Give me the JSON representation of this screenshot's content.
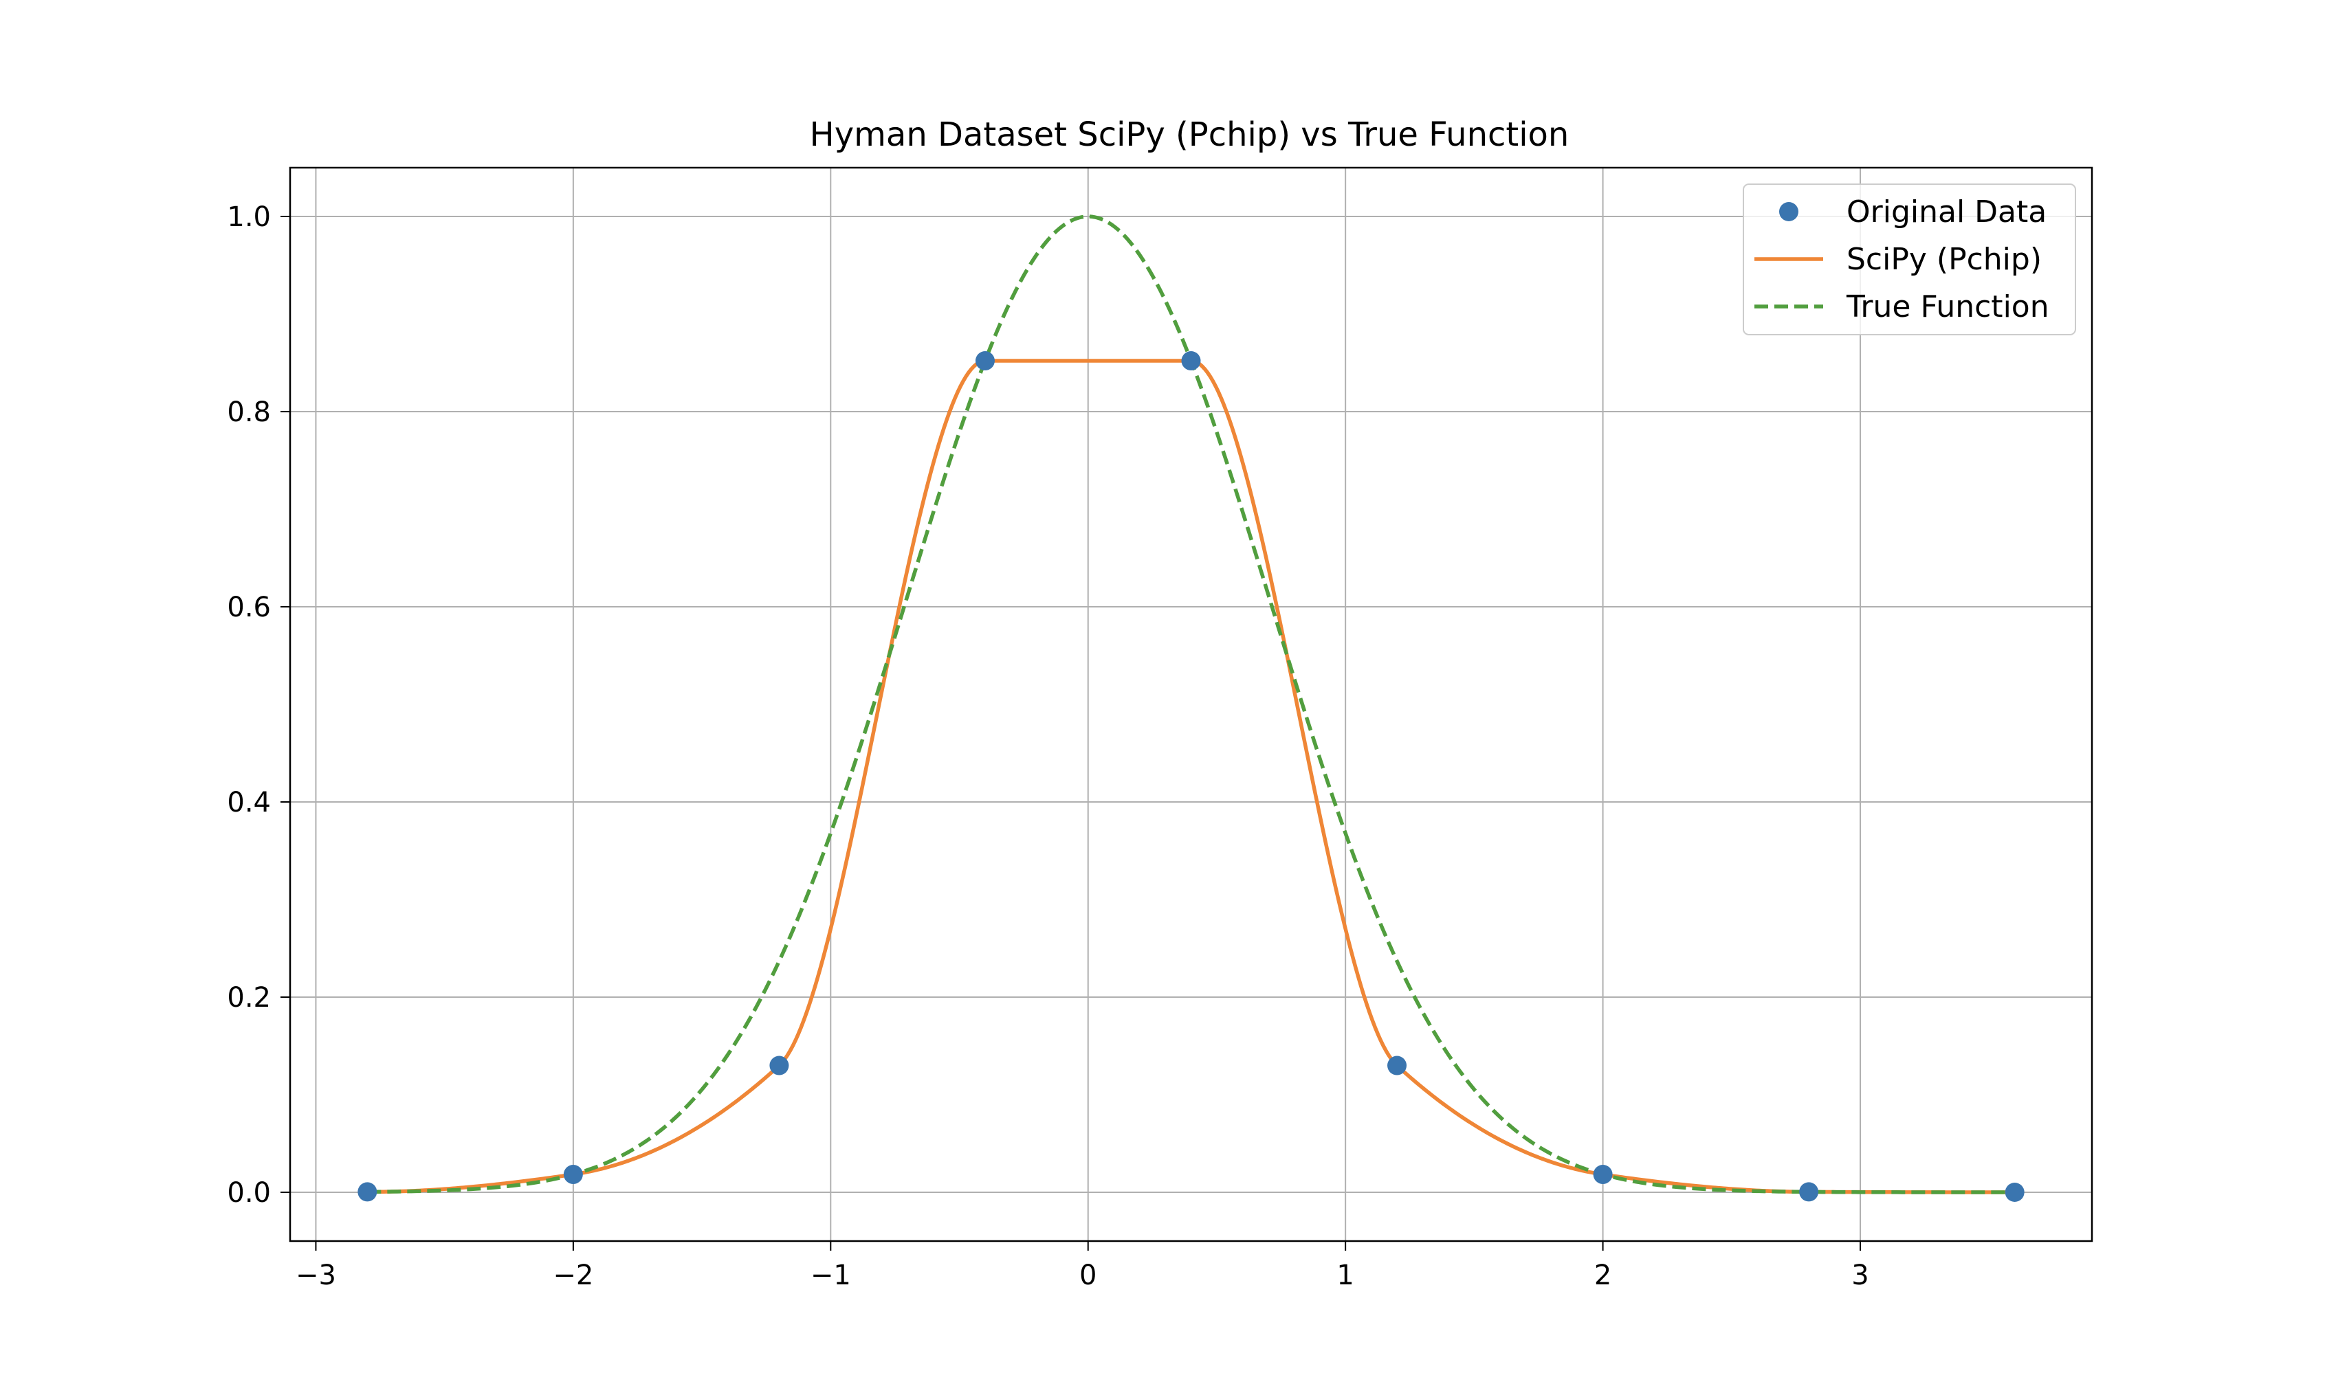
{
  "chart_data": {
    "type": "line",
    "title": "Hyman Dataset SciPy (Pchip) vs True Function",
    "xlabel": "",
    "ylabel": "",
    "xlim": [
      -3.1,
      3.9
    ],
    "ylim": [
      -0.05,
      1.05
    ],
    "grid": true,
    "legend_placement": "top-right",
    "x_ticks": [
      -3,
      -2,
      -1,
      0,
      1,
      2,
      3
    ],
    "x_tick_labels": [
      "−3",
      "−2",
      "−1",
      "0",
      "1",
      "2",
      "3"
    ],
    "y_ticks": [
      0.0,
      0.2,
      0.4,
      0.6,
      0.8,
      1.0
    ],
    "y_tick_labels": [
      "0.0",
      "0.2",
      "0.4",
      "0.6",
      "0.8",
      "1.0"
    ],
    "series": [
      {
        "name": "Original Data",
        "style": "markers",
        "color": "#3a75af",
        "x": [
          -2.8,
          -2.0,
          -1.2,
          -0.4,
          0.4,
          1.2,
          2.0,
          2.8,
          3.6
        ],
        "y": [
          0.0004,
          0.0183,
          0.1299,
          0.8521,
          0.8521,
          0.1299,
          0.0183,
          0.0004,
          0.0
        ]
      },
      {
        "name": "SciPy (Pchip)",
        "style": "solid",
        "color": "#ef8636",
        "interpolation": "pchip",
        "x": [
          -2.8,
          -2.0,
          -1.2,
          -0.4,
          0.4,
          1.2,
          2.0,
          2.8,
          3.6
        ],
        "y": [
          0.0004,
          0.0183,
          0.1299,
          0.8521,
          0.8521,
          0.1299,
          0.0183,
          0.0004,
          0.0
        ]
      },
      {
        "name": "True Function",
        "style": "dashed",
        "color": "#519e3e",
        "function": "exp(-x^2)",
        "x_range": [
          -2.8,
          3.6
        ]
      }
    ]
  }
}
